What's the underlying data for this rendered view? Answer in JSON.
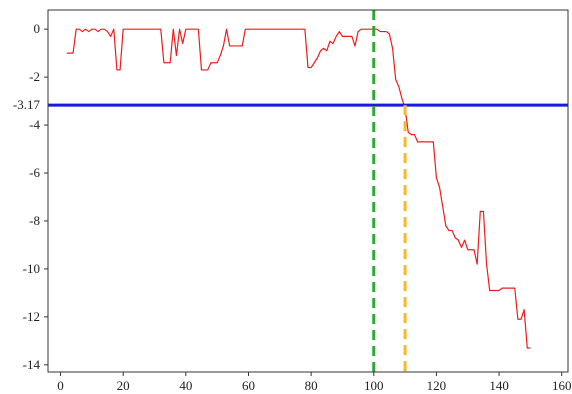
{
  "chart_data": {
    "type": "line",
    "title": "",
    "xlabel": "",
    "ylabel": "",
    "xlim": [
      -4,
      162
    ],
    "ylim": [
      -14.3,
      0.8
    ],
    "x_ticks": [
      "0",
      "20",
      "40",
      "60",
      "80",
      "100",
      "120",
      "140",
      "160"
    ],
    "y_ticks": [
      "0",
      "-2",
      "-4",
      "-6",
      "-8",
      "-10",
      "-12",
      "-14"
    ],
    "grid": false,
    "legend": "none",
    "series": [
      {
        "color": "#ee1c1c",
        "points": [
          [
            2,
            -1
          ],
          [
            4,
            -1
          ],
          [
            5,
            0
          ],
          [
            6,
            0
          ],
          [
            7,
            -0.1
          ],
          [
            8,
            0
          ],
          [
            9,
            -0.1
          ],
          [
            10,
            0
          ],
          [
            11,
            0
          ],
          [
            12,
            -0.1
          ],
          [
            13,
            0
          ],
          [
            14,
            0
          ],
          [
            15,
            -0.1
          ],
          [
            16,
            -0.3
          ],
          [
            17,
            0
          ],
          [
            18,
            -1.7
          ],
          [
            19,
            -1.7
          ],
          [
            20,
            0
          ],
          [
            21,
            0
          ],
          [
            22,
            0
          ],
          [
            24,
            0
          ],
          [
            26,
            0
          ],
          [
            28,
            0
          ],
          [
            30,
            0
          ],
          [
            32,
            0
          ],
          [
            33,
            -1.4
          ],
          [
            34,
            -1.4
          ],
          [
            35,
            -1.4
          ],
          [
            36,
            0
          ],
          [
            37,
            -1.1
          ],
          [
            38,
            0
          ],
          [
            39,
            -0.6
          ],
          [
            40,
            0
          ],
          [
            41,
            0
          ],
          [
            42,
            0
          ],
          [
            43,
            0
          ],
          [
            44,
            0
          ],
          [
            45,
            -1.7
          ],
          [
            46,
            -1.7
          ],
          [
            47,
            -1.7
          ],
          [
            48,
            -1.4
          ],
          [
            49,
            -1.4
          ],
          [
            50,
            -1.4
          ],
          [
            51,
            -1.1
          ],
          [
            52,
            -0.7
          ],
          [
            53,
            0
          ],
          [
            54,
            -0.7
          ],
          [
            55,
            -0.7
          ],
          [
            56,
            -0.7
          ],
          [
            57,
            -0.7
          ],
          [
            58,
            -0.7
          ],
          [
            59,
            0
          ],
          [
            60,
            0
          ],
          [
            65,
            0
          ],
          [
            70,
            0
          ],
          [
            75,
            0
          ],
          [
            78,
            0
          ],
          [
            79,
            -1.6
          ],
          [
            80,
            -1.6
          ],
          [
            81,
            -1.4
          ],
          [
            82,
            -1.2
          ],
          [
            83,
            -0.9
          ],
          [
            84,
            -0.8
          ],
          [
            85,
            -0.9
          ],
          [
            86,
            -0.5
          ],
          [
            87,
            -0.6
          ],
          [
            88,
            -0.3
          ],
          [
            89,
            -0.1
          ],
          [
            90,
            -0.3
          ],
          [
            91,
            -0.3
          ],
          [
            92,
            -0.3
          ],
          [
            93,
            -0.3
          ],
          [
            94,
            -0.7
          ],
          [
            95,
            -0.1
          ],
          [
            96,
            0
          ],
          [
            97,
            0
          ],
          [
            98,
            0
          ],
          [
            99,
            0
          ],
          [
            100,
            0
          ],
          [
            101,
            0
          ],
          [
            102,
            -0.1
          ],
          [
            103,
            -0.1
          ],
          [
            104,
            -0.1
          ],
          [
            105,
            -0.2
          ],
          [
            106,
            -0.8
          ],
          [
            107,
            -2.1
          ],
          [
            108,
            -2.4
          ],
          [
            109,
            -2.9
          ],
          [
            110,
            -3.3
          ],
          [
            111,
            -4.3
          ],
          [
            112,
            -4.4
          ],
          [
            113,
            -4.4
          ],
          [
            114,
            -4.7
          ],
          [
            115,
            -4.7
          ],
          [
            116,
            -4.7
          ],
          [
            117,
            -4.7
          ],
          [
            118,
            -4.7
          ],
          [
            119,
            -4.7
          ],
          [
            120,
            -6.2
          ],
          [
            121,
            -6.6
          ],
          [
            122,
            -7.4
          ],
          [
            123,
            -8.2
          ],
          [
            124,
            -8.4
          ],
          [
            125,
            -8.4
          ],
          [
            126,
            -8.7
          ],
          [
            127,
            -8.8
          ],
          [
            128,
            -9.1
          ],
          [
            129,
            -8.8
          ],
          [
            130,
            -9.2
          ],
          [
            131,
            -9.2
          ],
          [
            132,
            -9.2
          ],
          [
            133,
            -9.8
          ],
          [
            134,
            -7.6
          ],
          [
            135,
            -7.6
          ],
          [
            136,
            -9.8
          ],
          [
            137,
            -10.9
          ],
          [
            138,
            -10.9
          ],
          [
            139,
            -10.9
          ],
          [
            140,
            -10.9
          ],
          [
            141,
            -10.8
          ],
          [
            142,
            -10.8
          ],
          [
            143,
            -10.8
          ],
          [
            144,
            -10.8
          ],
          [
            145,
            -10.8
          ],
          [
            146,
            -12.1
          ],
          [
            147,
            -12.1
          ],
          [
            148,
            -11.7
          ],
          [
            149,
            -13.3
          ],
          [
            150,
            -13.3
          ]
        ]
      }
    ],
    "annotations": {
      "hline": {
        "value": -3.17,
        "label": "-3.17",
        "color": "#1a1adb"
      },
      "vline_green": {
        "x": 100,
        "color": "#2ea62e"
      },
      "vline_orange": {
        "x": 110,
        "y_top": -3.17,
        "color": "#f5b82e"
      }
    }
  }
}
